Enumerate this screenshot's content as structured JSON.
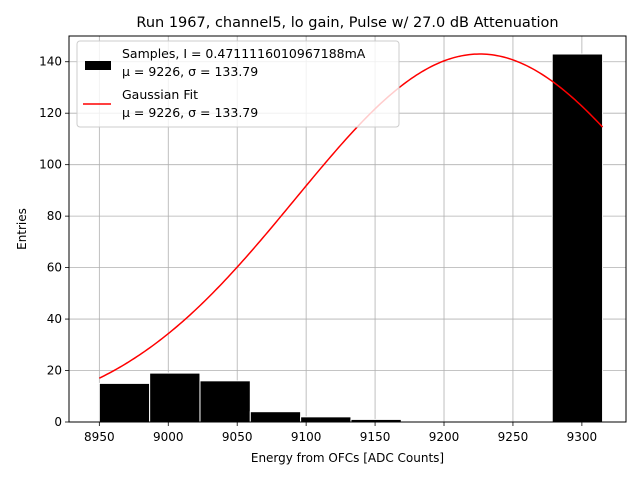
{
  "chart_data": {
    "type": "bar",
    "title": "Run 1967, channel5, lo gain, Pulse w/ 27.0 dB Attenuation",
    "xlabel": "Energy from OFCs [ADC Counts]",
    "ylabel": "Entries",
    "xlim": [
      8928,
      9332
    ],
    "ylim": [
      0,
      150
    ],
    "xticks": [
      8950,
      9000,
      9050,
      9100,
      9150,
      9200,
      9250,
      9300
    ],
    "yticks": [
      0,
      20,
      40,
      60,
      80,
      100,
      120,
      140
    ],
    "grid": true,
    "legend_position": "top-left",
    "histogram": {
      "name": "Samples, I = 0.4711116010967188mA",
      "name_line2": "μ = 9226, σ = 133.79",
      "color": "#000000",
      "edge_color": "#ffffff",
      "bins": [
        {
          "x0": 8950,
          "x1": 8986.5,
          "count": 15
        },
        {
          "x0": 8986.5,
          "x1": 9023,
          "count": 19
        },
        {
          "x0": 9023,
          "x1": 9059.5,
          "count": 16
        },
        {
          "x0": 9059.5,
          "x1": 9096,
          "count": 4
        },
        {
          "x0": 9096,
          "x1": 9132.5,
          "count": 2
        },
        {
          "x0": 9132.5,
          "x1": 9169,
          "count": 1
        },
        {
          "x0": 9169,
          "x1": 9205.5,
          "count": 0
        },
        {
          "x0": 9205.5,
          "x1": 9242,
          "count": 0
        },
        {
          "x0": 9242,
          "x1": 9278.5,
          "count": 0
        },
        {
          "x0": 9278.5,
          "x1": 9315,
          "count": 143
        }
      ]
    },
    "fit": {
      "name": "Gaussian Fit",
      "name_line2": "μ = 9226, σ = 133.79",
      "color": "#ff0000",
      "type": "gaussian",
      "mu": 9226,
      "sigma": 133.79,
      "amplitude": 143,
      "x_range": [
        8950,
        9315
      ]
    }
  }
}
